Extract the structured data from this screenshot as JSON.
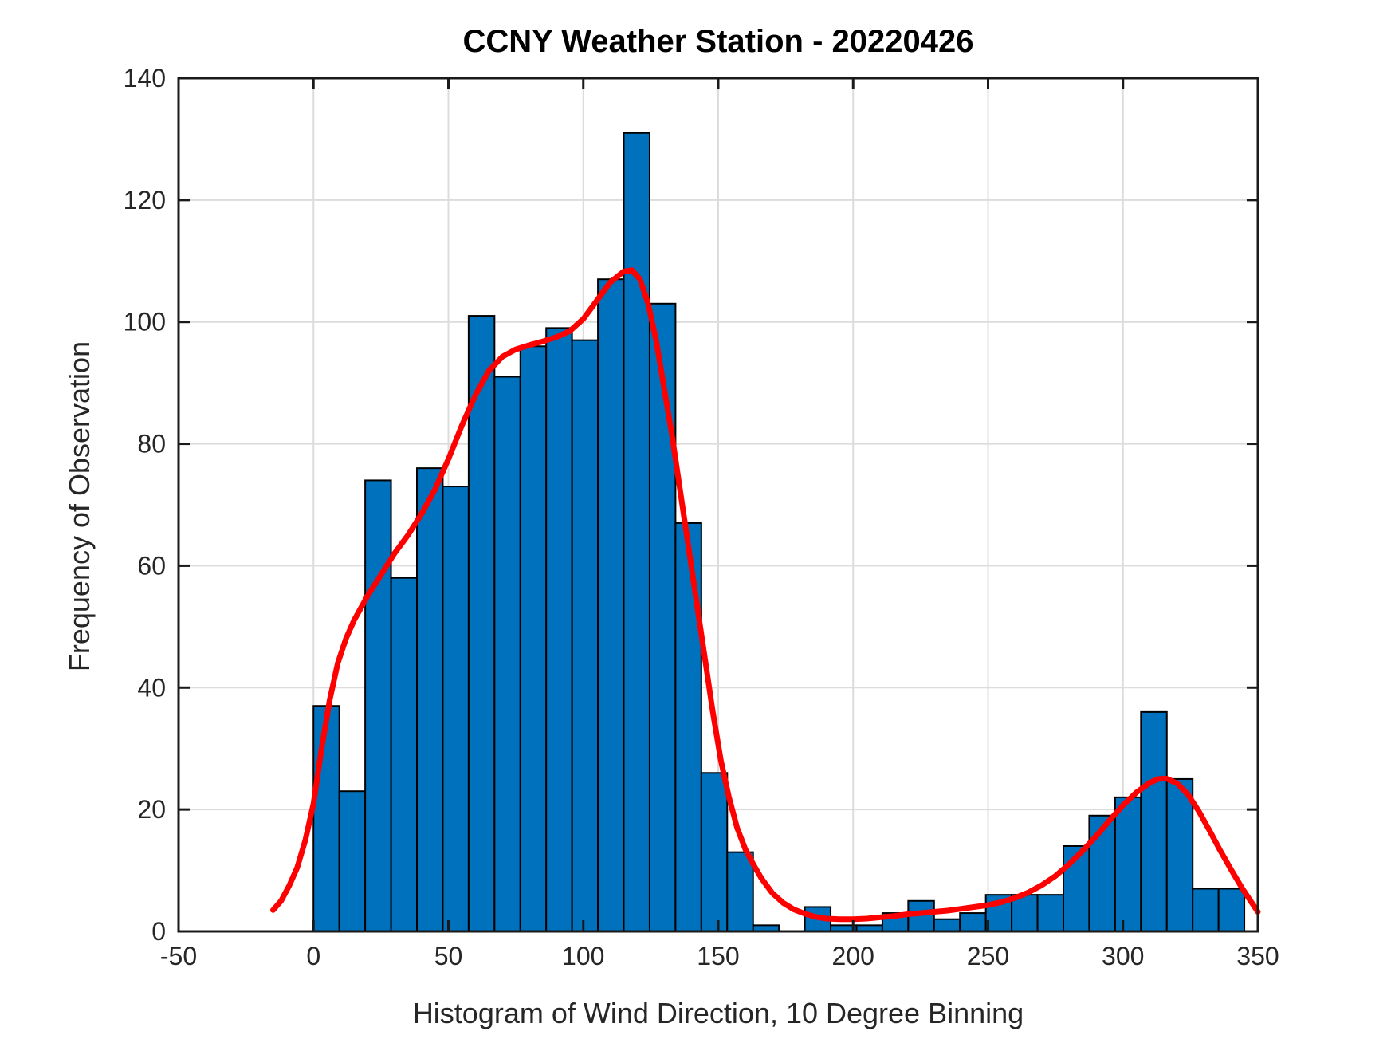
{
  "chart_data": {
    "type": "bar",
    "title": "CCNY Weather Station - 20220426",
    "xlabel": "Histogram of Wind Direction, 10 Degree Binning",
    "ylabel": "Frequency of Observation",
    "xlim": [
      -50,
      350
    ],
    "ylim": [
      0,
      140
    ],
    "x_ticks": [
      -50,
      0,
      50,
      100,
      150,
      200,
      250,
      300,
      350
    ],
    "y_ticks": [
      0,
      20,
      40,
      60,
      80,
      100,
      120,
      140
    ],
    "grid": true,
    "legend": "none",
    "bin_width_deg": 10,
    "first_bin_start_deg": 0,
    "bin_start_degrees": [
      0,
      10,
      20,
      30,
      40,
      50,
      60,
      70,
      80,
      90,
      100,
      110,
      120,
      130,
      140,
      150,
      160,
      170,
      180,
      190,
      200,
      210,
      220,
      230,
      240,
      250,
      260,
      270,
      280,
      290,
      300,
      310,
      320,
      330,
      340,
      350
    ],
    "counts": [
      37,
      23,
      74,
      58,
      76,
      73,
      101,
      91,
      96,
      99,
      97,
      107,
      131,
      103,
      67,
      26,
      13,
      1,
      0,
      4,
      1,
      1,
      3,
      5,
      2,
      3,
      6,
      6,
      6,
      14,
      19,
      22,
      36,
      25,
      7,
      7
    ],
    "bar_color": "#0072BD",
    "bar_edge_color": "#000000",
    "curve": {
      "name": "density-fit-curve",
      "color": "#FF0000",
      "points": [
        [
          -15,
          3.5
        ],
        [
          -12,
          5
        ],
        [
          -9,
          7.5
        ],
        [
          -6,
          10.5
        ],
        [
          -3,
          15
        ],
        [
          0,
          21
        ],
        [
          3,
          30
        ],
        [
          6,
          38
        ],
        [
          9,
          44
        ],
        [
          12,
          48
        ],
        [
          15,
          51
        ],
        [
          20,
          55
        ],
        [
          25,
          58.5
        ],
        [
          30,
          62
        ],
        [
          35,
          65
        ],
        [
          40,
          68.5
        ],
        [
          45,
          72.5
        ],
        [
          50,
          77.5
        ],
        [
          55,
          83
        ],
        [
          60,
          88
        ],
        [
          65,
          92
        ],
        [
          70,
          94.3
        ],
        [
          75,
          95.5
        ],
        [
          80,
          96.2
        ],
        [
          85,
          96.8
        ],
        [
          90,
          97.5
        ],
        [
          95,
          98.5
        ],
        [
          100,
          100.5
        ],
        [
          105,
          103.5
        ],
        [
          110,
          106.5
        ],
        [
          115,
          108.3
        ],
        [
          118,
          108.5
        ],
        [
          121,
          107
        ],
        [
          124,
          103
        ],
        [
          127,
          97
        ],
        [
          130,
          89
        ],
        [
          133,
          81
        ],
        [
          136,
          72
        ],
        [
          139,
          63
        ],
        [
          142,
          54
        ],
        [
          145,
          45
        ],
        [
          148,
          36
        ],
        [
          151,
          28
        ],
        [
          154,
          22
        ],
        [
          157,
          17
        ],
        [
          160,
          13.5
        ],
        [
          163,
          11
        ],
        [
          166,
          8.7
        ],
        [
          170,
          6.3
        ],
        [
          174,
          4.7
        ],
        [
          178,
          3.6
        ],
        [
          182,
          2.9
        ],
        [
          186,
          2.4
        ],
        [
          190,
          2.1
        ],
        [
          195,
          2.0
        ],
        [
          200,
          2.0
        ],
        [
          205,
          2.1
        ],
        [
          210,
          2.3
        ],
        [
          215,
          2.5
        ],
        [
          220,
          2.8
        ],
        [
          225,
          3.0
        ],
        [
          230,
          3.2
        ],
        [
          235,
          3.4
        ],
        [
          240,
          3.7
        ],
        [
          245,
          4.0
        ],
        [
          250,
          4.3
        ],
        [
          255,
          4.8
        ],
        [
          260,
          5.5
        ],
        [
          265,
          6.4
        ],
        [
          270,
          7.6
        ],
        [
          275,
          9.1
        ],
        [
          280,
          11
        ],
        [
          285,
          13.2
        ],
        [
          290,
          15.6
        ],
        [
          295,
          18.2
        ],
        [
          300,
          20.7
        ],
        [
          305,
          22.8
        ],
        [
          310,
          24.4
        ],
        [
          313,
          25.0
        ],
        [
          316,
          25.1
        ],
        [
          320,
          24.3
        ],
        [
          324,
          22.5
        ],
        [
          328,
          19.8
        ],
        [
          332,
          16.6
        ],
        [
          336,
          13.3
        ],
        [
          340,
          10.2
        ],
        [
          344,
          7.2
        ],
        [
          347,
          5.2
        ],
        [
          350,
          3.2
        ]
      ]
    },
    "axis_color": "#1a1a1a",
    "tick_label_color": "#262626",
    "grid_color": "#dcdcdc",
    "background_color": "#ffffff"
  }
}
